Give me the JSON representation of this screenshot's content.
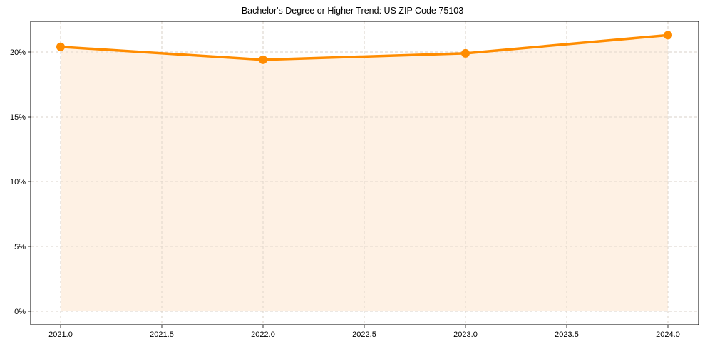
{
  "chart_data": {
    "type": "line",
    "title": "Bachelor's Degree or Higher Trend: US ZIP Code 75103",
    "xlabel": "",
    "ylabel": "",
    "x": [
      2021,
      2022,
      2023,
      2024
    ],
    "series": [
      {
        "name": "Bachelor's Degree or Higher",
        "values": [
          20.4,
          19.4,
          19.9,
          21.3
        ],
        "color": "#FF8C00",
        "fill_color": "#FEF1E4",
        "markers": true,
        "area_fill": true
      }
    ],
    "xticks": [
      "2021.0",
      "2021.5",
      "2022.0",
      "2022.5",
      "2023.0",
      "2023.5",
      "2024.0"
    ],
    "yticks": [
      "0%",
      "5%",
      "10%",
      "15%",
      "20%"
    ],
    "xlim": [
      2020.7,
      2024.15
    ],
    "ylim": [
      -1.05,
      22.35
    ],
    "grid": true,
    "legend": null
  }
}
